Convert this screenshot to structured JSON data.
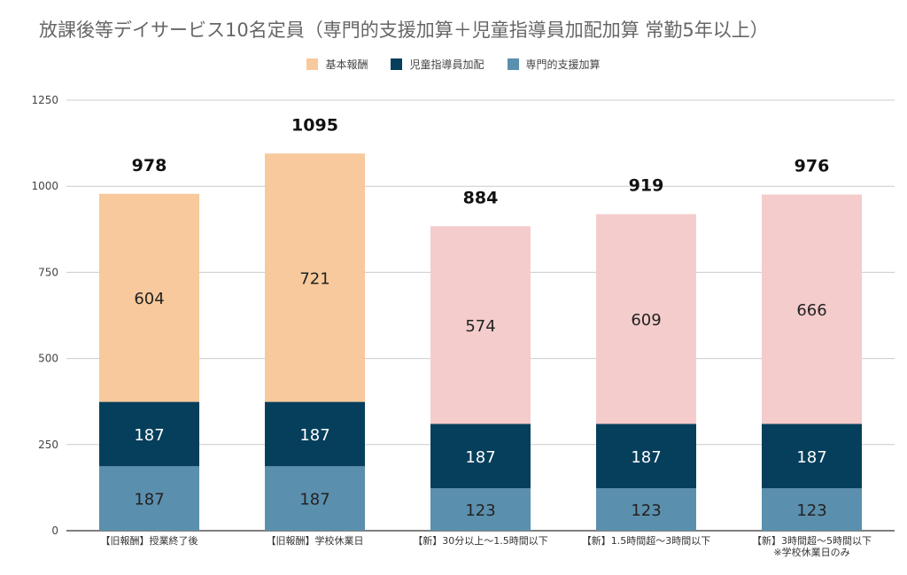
{
  "chart_data": {
    "type": "bar",
    "stacked": true,
    "title": "放課後等デイサービス10名定員（専門的支援加算＋児童指導員加配加算 常勤5年以上）",
    "categories": [
      [
        "【旧報酬】授業終了後"
      ],
      [
        "【旧報酬】学校休業日"
      ],
      [
        "【新】30分以上～1.5時間以下"
      ],
      [
        "【新】1.5時間超～3時間以下"
      ],
      [
        "【新】3時間超～5時間以下",
        "※学校休業日のみ"
      ]
    ],
    "series": [
      {
        "name": "専門的支援加算",
        "values": [
          187,
          187,
          123,
          123,
          123
        ],
        "color": "#5b8fae"
      },
      {
        "name": "児童指導員加配",
        "values": [
          187,
          187,
          187,
          187,
          187
        ],
        "color": "#063f5c"
      },
      {
        "name": "基本報酬",
        "values": [
          604,
          721,
          574,
          609,
          666
        ],
        "color": "#f7c99c",
        "colors_by_category": [
          "#f7c99c",
          "#f7c99c",
          "#f4cccc",
          "#f4cccc",
          "#f4cccc"
        ]
      }
    ],
    "totals": [
      978,
      1095,
      884,
      919,
      976
    ],
    "legend": [
      "基本報酬",
      "児童指導員加配",
      "専門的支援加算"
    ],
    "legend_colors": [
      "#f7c99c",
      "#063f5c",
      "#5b8fae"
    ],
    "legend_position": "top",
    "ylim": [
      0,
      1250
    ],
    "yticks": [
      0,
      250,
      500,
      750,
      1000,
      1250
    ],
    "grid": true
  }
}
